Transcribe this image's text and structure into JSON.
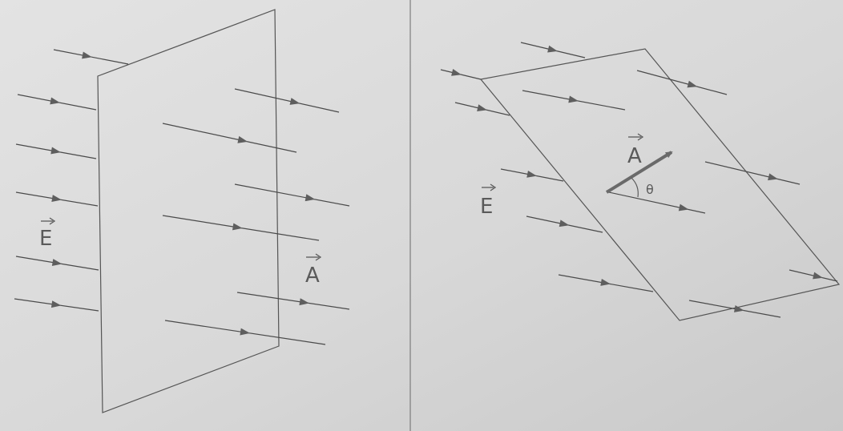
{
  "left_panel": {
    "field_label": "E",
    "area_label": "A"
  },
  "right_panel": {
    "field_label": "E",
    "area_label": "A",
    "angle_label": "θ"
  },
  "colors": {
    "paper": "#d9d9d9",
    "line": "#4a4a4a",
    "arrowhead": "#5e5e5e",
    "area_vector": "#6a6a6a",
    "label": "#5a5a5a"
  }
}
